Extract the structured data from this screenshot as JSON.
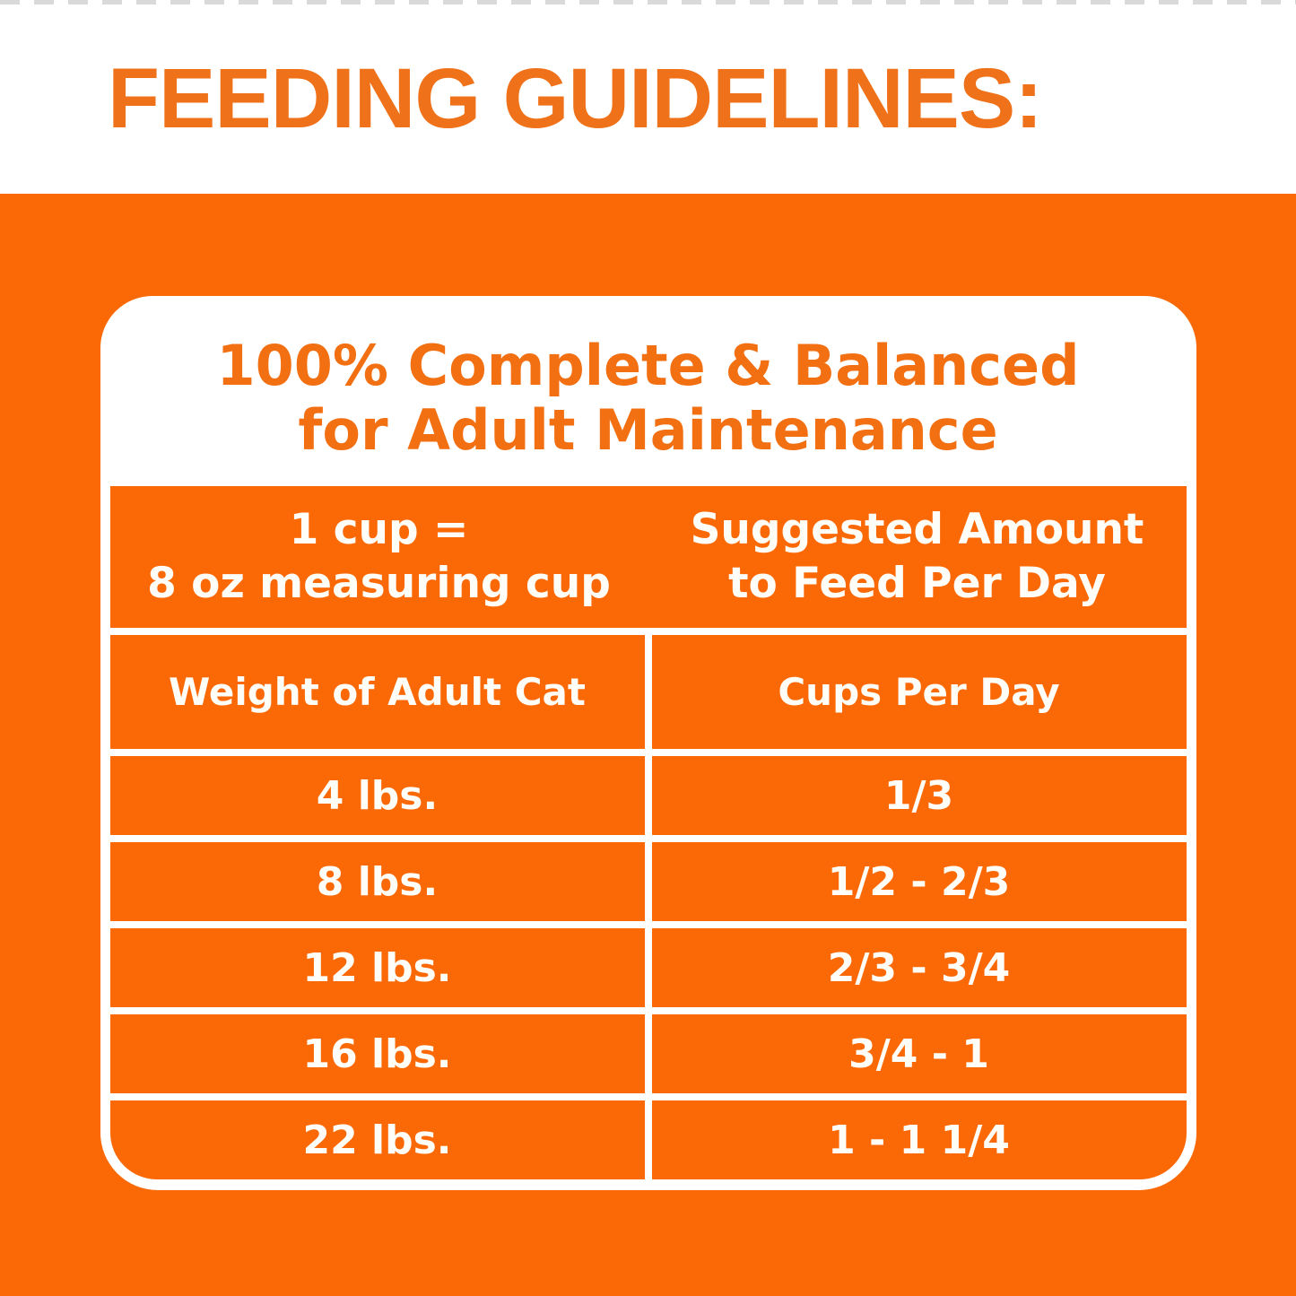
{
  "header": {
    "title": "FEEDING GUIDELINES:"
  },
  "card": {
    "title_line1": "100% Complete & Balanced",
    "title_line2": "for Adult Maintenance",
    "info_header": {
      "left_line1": "1 cup =",
      "left_line2": "8 oz measuring cup",
      "right_line1": "Suggested Amount",
      "right_line2": "to Feed Per Day"
    },
    "table": {
      "columns": [
        "Weight of Adult Cat",
        "Cups Per Day"
      ],
      "rows": [
        {
          "weight": "4 lbs.",
          "cups": "1/3"
        },
        {
          "weight": "8 lbs.",
          "cups": "1/2 - 2/3"
        },
        {
          "weight": "12 lbs.",
          "cups": "2/3 - 3/4"
        },
        {
          "weight": "16 lbs.",
          "cups": "3/4 - 1"
        },
        {
          "weight": "22 lbs.",
          "cups": "1 - 1 1/4"
        }
      ]
    }
  },
  "colors": {
    "background_orange": "#FA6905",
    "header_text_orange": "#EF7119",
    "card_title_orange": "#F26F12",
    "cell_text_white": "#FFFDF8",
    "card_white": "#FFFFFF"
  }
}
